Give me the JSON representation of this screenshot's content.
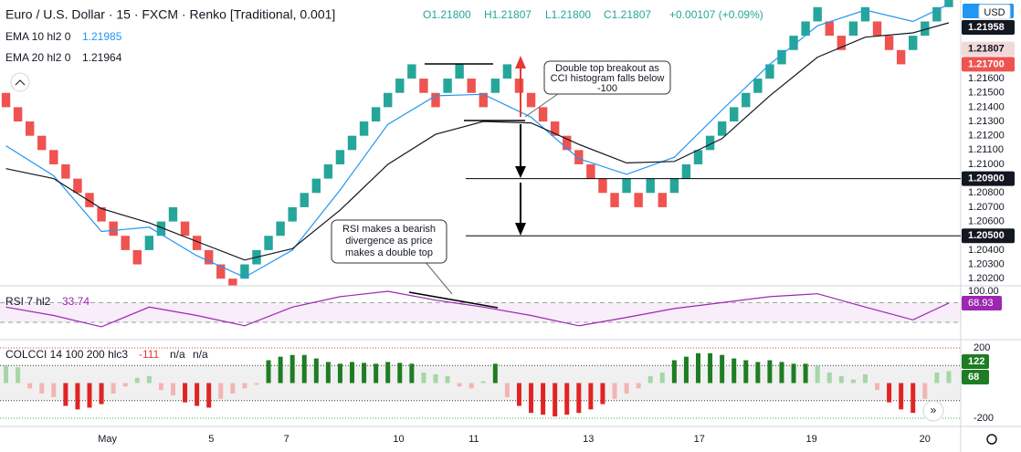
{
  "header": {
    "title": "Euro / U.S. Dollar · 15 · FXCM · Renko [Traditional, 0.001]",
    "ohlc": [
      "O1.21800",
      "H1.21807",
      "L1.21800",
      "C1.21807"
    ],
    "change": "+0.00107 (+0.09%)",
    "currency": "USD"
  },
  "chart_data": [
    {
      "type": "renko",
      "series": [
        {
          "name": "Euro / U.S. Dollar",
          "color_up": "#26a69a",
          "color_down": "#ef5350",
          "open": [
            1.215,
            1.214,
            1.213,
            1.212,
            1.211,
            1.21,
            1.209,
            1.208,
            1.207,
            1.206,
            1.205,
            1.204,
            1.204,
            1.205,
            1.206,
            1.206,
            1.205,
            1.204,
            1.203,
            1.202,
            1.202,
            1.203,
            1.204,
            1.205,
            1.206,
            1.207,
            1.208,
            1.209,
            1.21,
            1.211,
            1.212,
            1.213,
            1.214,
            1.215,
            1.216,
            1.216,
            1.215,
            1.215,
            1.216,
            1.216,
            1.215,
            1.215,
            1.216,
            1.216,
            1.215,
            1.214,
            1.213,
            1.212,
            1.211,
            1.21,
            1.209,
            1.208,
            1.208,
            1.208,
            1.208,
            1.208,
            1.208,
            1.209,
            1.21,
            1.211,
            1.212,
            1.213,
            1.214,
            1.215,
            1.216,
            1.217,
            1.218,
            1.219,
            1.22,
            1.22,
            1.219,
            1.219,
            1.22,
            1.22,
            1.219,
            1.218,
            1.218,
            1.219,
            1.22,
            1.221
          ],
          "close": [
            1.214,
            1.213,
            1.212,
            1.211,
            1.21,
            1.209,
            1.208,
            1.207,
            1.206,
            1.205,
            1.204,
            1.203,
            1.205,
            1.206,
            1.207,
            1.205,
            1.204,
            1.203,
            1.202,
            1.201,
            1.203,
            1.204,
            1.205,
            1.206,
            1.207,
            1.208,
            1.209,
            1.21,
            1.211,
            1.212,
            1.213,
            1.214,
            1.215,
            1.216,
            1.217,
            1.215,
            1.214,
            1.216,
            1.217,
            1.215,
            1.214,
            1.216,
            1.217,
            1.215,
            1.214,
            1.213,
            1.212,
            1.211,
            1.21,
            1.209,
            1.208,
            1.207,
            1.209,
            1.207,
            1.209,
            1.207,
            1.209,
            1.21,
            1.211,
            1.212,
            1.213,
            1.214,
            1.215,
            1.216,
            1.217,
            1.218,
            1.219,
            1.22,
            1.221,
            1.219,
            1.218,
            1.22,
            1.221,
            1.219,
            1.218,
            1.217,
            1.219,
            1.22,
            1.221,
            1.222
          ]
        }
      ],
      "lines": [
        {
          "name": "EMA 10 hl2 0",
          "legend_value": "1.21985",
          "color": "#2196f3",
          "x": [
            0,
            4,
            8,
            12,
            16,
            20,
            24,
            28,
            32,
            36,
            40,
            44,
            48,
            52,
            56,
            60,
            64,
            68,
            72,
            76,
            79
          ],
          "values": [
            1.2113,
            1.2092,
            1.2053,
            1.2056,
            1.2036,
            1.2021,
            1.204,
            1.2082,
            1.2128,
            1.2148,
            1.2149,
            1.2133,
            1.2104,
            1.2093,
            1.2105,
            1.2138,
            1.217,
            1.2197,
            1.2208,
            1.22,
            1.2212
          ]
        },
        {
          "name": "EMA 20 hl2 0",
          "legend_value": "1.21964",
          "color": "#131722",
          "x": [
            0,
            4,
            8,
            12,
            16,
            20,
            24,
            28,
            32,
            36,
            40,
            44,
            48,
            52,
            56,
            60,
            64,
            68,
            72,
            76,
            79
          ],
          "values": [
            1.2097,
            1.209,
            1.2069,
            1.2059,
            1.2046,
            1.2033,
            1.2041,
            1.2068,
            1.21,
            1.2121,
            1.213,
            1.2129,
            1.2114,
            1.2101,
            1.2102,
            1.2118,
            1.2148,
            1.2175,
            1.2189,
            1.2192,
            1.2199
          ]
        }
      ],
      "xlim": [
        -0.5,
        80
      ],
      "ylim": [
        1.2015,
        1.2215
      ],
      "yticks": [
        {
          "value": 1.216,
          "label": "1.21600"
        },
        {
          "value": 1.215,
          "label": "1.21500"
        },
        {
          "value": 1.214,
          "label": "1.21400"
        },
        {
          "value": 1.213,
          "label": "1.21300"
        },
        {
          "value": 1.212,
          "label": "1.21200"
        },
        {
          "value": 1.211,
          "label": "1.21100"
        },
        {
          "value": 1.21,
          "label": "1.21000"
        },
        {
          "value": 1.208,
          "label": "1.20800"
        },
        {
          "value": 1.207,
          "label": "1.20700"
        },
        {
          "value": 1.206,
          "label": "1.20600"
        },
        {
          "value": 1.204,
          "label": "1.20400"
        },
        {
          "value": 1.203,
          "label": "1.20300"
        },
        {
          "value": 1.202,
          "label": "1.20200"
        }
      ],
      "xticks": [
        {
          "value": 8.5,
          "label": "May"
        },
        {
          "value": 17.2,
          "label": "5"
        },
        {
          "value": 23.5,
          "label": "7"
        },
        {
          "value": 32.9,
          "label": "10"
        },
        {
          "value": 39.2,
          "label": "11"
        },
        {
          "value": 48.8,
          "label": "13"
        },
        {
          "value": 58.1,
          "label": "17"
        },
        {
          "value": 67.5,
          "label": "19"
        },
        {
          "value": 77,
          "label": "20"
        }
      ],
      "levels": [
        {
          "value": 1.209,
          "label": "1.20900"
        },
        {
          "value": 1.205,
          "label": "1.20500"
        }
      ],
      "badges": [
        {
          "value": 1.21958,
          "label": "1.21958",
          "color": "#131722",
          "text_color": "#ffffff"
        },
        {
          "value": 1.21807,
          "label": "1.21807",
          "color": "#f1d9d9",
          "text_color": "#131722"
        },
        {
          "value": 1.217,
          "label": "1.21700",
          "color": "#ef5350",
          "text_color": "#ffffff"
        }
      ],
      "annotations": [
        {
          "lines": [
            "Double top breakout as",
            "CCI histogram falls below",
            "-100"
          ]
        },
        {
          "lines": [
            "RSI makes a bearish",
            "divergence as price",
            "makes a double top"
          ]
        }
      ]
    },
    {
      "type": "line",
      "title": "RSI 7 hl2",
      "legend_value": "33.74",
      "color": "#9c27b0",
      "x": [
        0,
        4,
        8,
        12,
        16,
        20,
        24,
        28,
        32,
        36,
        40,
        44,
        48,
        52,
        56,
        60,
        64,
        68,
        72,
        76,
        79
      ],
      "values": [
        61,
        44,
        21,
        61,
        44,
        23,
        61,
        82,
        93,
        75,
        61,
        44,
        23,
        40,
        58,
        70,
        82,
        88,
        61,
        35,
        69
      ],
      "ylim": [
        -5,
        104
      ],
      "yticks": [
        {
          "value": 100,
          "label": "100.00"
        }
      ],
      "band": [
        30,
        70
      ],
      "badge": {
        "value": 68.93,
        "label": "68.93"
      }
    },
    {
      "type": "histogram",
      "title": "COLCCI 14 100 200 hlc3",
      "legend_values": [
        "-111",
        "n/a",
        "n/a"
      ],
      "values": [
        100,
        90,
        -30,
        -60,
        -80,
        -130,
        -150,
        -140,
        -120,
        -60,
        -20,
        30,
        40,
        -40,
        -70,
        -110,
        -130,
        -140,
        -90,
        -60,
        -30,
        -10,
        130,
        150,
        160,
        160,
        140,
        120,
        110,
        120,
        115,
        110,
        120,
        115,
        110,
        60,
        50,
        40,
        -20,
        -30,
        10,
        110,
        -80,
        -130,
        -170,
        -180,
        -190,
        -180,
        -170,
        -150,
        -120,
        -90,
        -60,
        -30,
        40,
        60,
        130,
        150,
        170,
        170,
        160,
        140,
        130,
        120,
        130,
        120,
        110,
        110,
        100,
        60,
        40,
        20,
        50,
        -40,
        -110,
        -150,
        -170,
        -90,
        60,
        68
      ],
      "ylim": [
        -247,
        247
      ],
      "yticks": [
        200,
        -200
      ],
      "band": [
        -100,
        100
      ],
      "levels": [
        {
          "value": 200,
          "color": "#e53935"
        },
        {
          "value": -200,
          "color": "#43a047"
        }
      ],
      "colors": {
        "strong_up": "#1e7d22",
        "up": "#a5d6a7",
        "down": "#f4b4b4",
        "strong_down": "#e02424"
      },
      "badges": [
        {
          "label": "122",
          "color": "#1e7d22"
        },
        {
          "label": "68",
          "color": "#1e7d22"
        }
      ]
    }
  ]
}
